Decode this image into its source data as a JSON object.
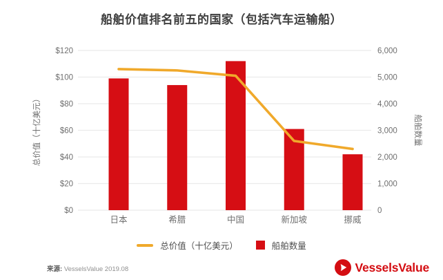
{
  "title": "船舶价值排名前五的国家（包括汽车运输船）",
  "chart_data": {
    "type": "combo",
    "categories": [
      "日本",
      "希腊",
      "中国",
      "新加坡",
      "挪威"
    ],
    "series": [
      {
        "name": "总价值（十亿美元）",
        "type": "line",
        "axis": "left",
        "color": "#f0a92b",
        "values": [
          106,
          105,
          101,
          52,
          46
        ]
      },
      {
        "name": "船舶数量",
        "type": "bar",
        "axis": "right",
        "color": "#d60e14",
        "values": [
          4950,
          4700,
          5600,
          3050,
          2100
        ]
      }
    ],
    "left_axis": {
      "label": "总价值（十亿美元）",
      "min": 0,
      "max": 120,
      "ticks": [
        "$0",
        "$20",
        "$40",
        "$60",
        "$80",
        "$100",
        "$120"
      ]
    },
    "right_axis": {
      "label": "船舶数量",
      "min": 0,
      "max": 6000,
      "ticks": [
        "0",
        "1,000",
        "2,000",
        "3,000",
        "4,000",
        "5,000",
        "6,000"
      ]
    },
    "grid": true,
    "legend_position": "bottom",
    "title": "船舶价值排名前五的国家（包括汽车运输船）"
  },
  "legend": {
    "line_label": "总价值（十亿美元）",
    "bar_label": "船舶数量"
  },
  "footer": {
    "source_prefix": "来源:",
    "source_text": "VesselsValue 2019.08",
    "logo_text": "VesselsValue"
  },
  "colors": {
    "bar": "#d60e14",
    "line": "#f0a92b",
    "grid": "#ebebeb",
    "tick_text": "#6f6f6f",
    "title_text": "#3f3f3f",
    "logo_red": "#d40d12"
  }
}
